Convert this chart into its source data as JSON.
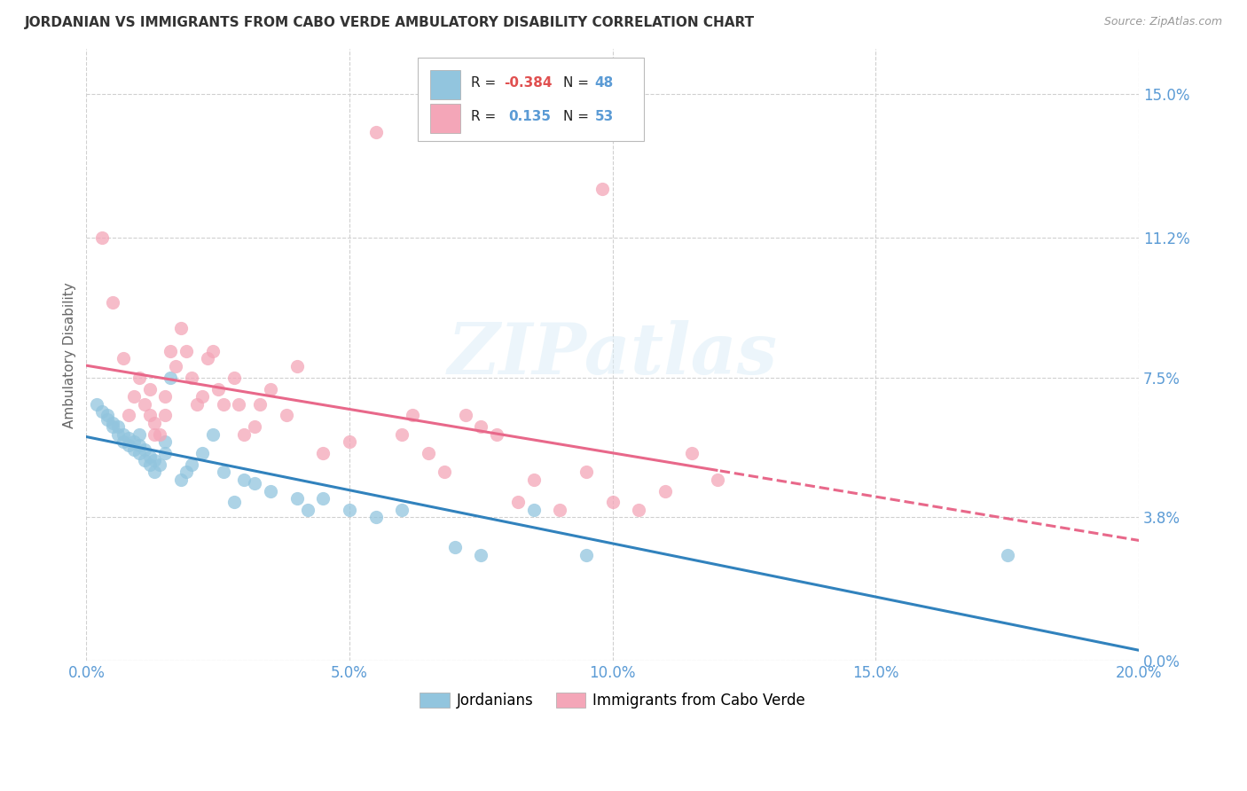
{
  "title": "JORDANIAN VS IMMIGRANTS FROM CABO VERDE AMBULATORY DISABILITY CORRELATION CHART",
  "source": "Source: ZipAtlas.com",
  "xlabel_ticks": [
    "0.0%",
    "5.0%",
    "10.0%",
    "15.0%",
    "20.0%"
  ],
  "xlabel_tick_vals": [
    0.0,
    0.05,
    0.1,
    0.15,
    0.2
  ],
  "ylabel": "Ambulatory Disability",
  "ylabel_ticks": [
    "0.0%",
    "3.8%",
    "7.5%",
    "11.2%",
    "15.0%"
  ],
  "ylabel_tick_vals": [
    0.0,
    0.038,
    0.075,
    0.112,
    0.15
  ],
  "xlim": [
    0.0,
    0.2
  ],
  "ylim": [
    0.0,
    0.162
  ],
  "watermark": "ZIPatlas",
  "legend_r_jordan": "-0.384",
  "legend_n_jordan": "48",
  "legend_r_cabo": "0.135",
  "legend_n_cabo": "53",
  "color_jordan": "#92c5de",
  "color_cabo": "#f4a6b8",
  "trendline_jordan_color": "#3182bd",
  "trendline_cabo_color": "#e8688a",
  "background_color": "#ffffff",
  "grid_color": "#d0d0d0",
  "jordan_x": [
    0.002,
    0.003,
    0.004,
    0.004,
    0.005,
    0.005,
    0.006,
    0.006,
    0.007,
    0.007,
    0.008,
    0.008,
    0.009,
    0.009,
    0.01,
    0.01,
    0.01,
    0.011,
    0.011,
    0.012,
    0.012,
    0.013,
    0.013,
    0.014,
    0.015,
    0.015,
    0.016,
    0.018,
    0.019,
    0.02,
    0.022,
    0.024,
    0.026,
    0.028,
    0.03,
    0.032,
    0.035,
    0.04,
    0.042,
    0.045,
    0.05,
    0.055,
    0.06,
    0.07,
    0.075,
    0.085,
    0.095,
    0.175
  ],
  "jordan_y": [
    0.068,
    0.066,
    0.065,
    0.064,
    0.062,
    0.063,
    0.06,
    0.062,
    0.058,
    0.06,
    0.059,
    0.057,
    0.056,
    0.058,
    0.055,
    0.057,
    0.06,
    0.053,
    0.056,
    0.052,
    0.054,
    0.05,
    0.053,
    0.052,
    0.055,
    0.058,
    0.075,
    0.048,
    0.05,
    0.052,
    0.055,
    0.06,
    0.05,
    0.042,
    0.048,
    0.047,
    0.045,
    0.043,
    0.04,
    0.043,
    0.04,
    0.038,
    0.04,
    0.03,
    0.028,
    0.04,
    0.028,
    0.028
  ],
  "cabo_x": [
    0.003,
    0.005,
    0.007,
    0.008,
    0.009,
    0.01,
    0.011,
    0.012,
    0.012,
    0.013,
    0.013,
    0.014,
    0.015,
    0.015,
    0.016,
    0.017,
    0.018,
    0.019,
    0.02,
    0.021,
    0.022,
    0.023,
    0.024,
    0.025,
    0.026,
    0.028,
    0.029,
    0.03,
    0.032,
    0.033,
    0.035,
    0.038,
    0.04,
    0.045,
    0.05,
    0.055,
    0.06,
    0.062,
    0.065,
    0.068,
    0.072,
    0.075,
    0.078,
    0.082,
    0.085,
    0.09,
    0.095,
    0.098,
    0.1,
    0.105,
    0.11,
    0.115,
    0.12
  ],
  "cabo_y": [
    0.112,
    0.095,
    0.08,
    0.065,
    0.07,
    0.075,
    0.068,
    0.072,
    0.065,
    0.06,
    0.063,
    0.06,
    0.07,
    0.065,
    0.082,
    0.078,
    0.088,
    0.082,
    0.075,
    0.068,
    0.07,
    0.08,
    0.082,
    0.072,
    0.068,
    0.075,
    0.068,
    0.06,
    0.062,
    0.068,
    0.072,
    0.065,
    0.078,
    0.055,
    0.058,
    0.14,
    0.06,
    0.065,
    0.055,
    0.05,
    0.065,
    0.062,
    0.06,
    0.042,
    0.048,
    0.04,
    0.05,
    0.125,
    0.042,
    0.04,
    0.045,
    0.055,
    0.048
  ],
  "trendline_cabo_solid_end": 0.12,
  "trendline_cabo_full_end": 0.2
}
